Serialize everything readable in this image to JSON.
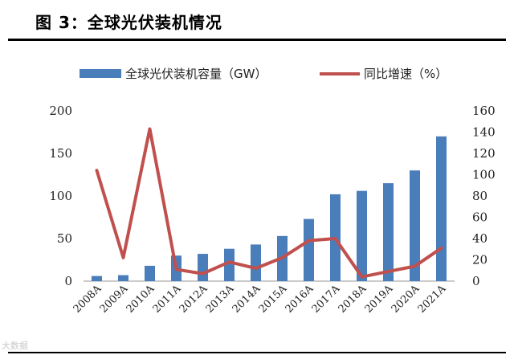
{
  "figure": {
    "title": "图 3：全球光伏装机情况",
    "watermark": "大数据"
  },
  "colors": {
    "bar": "#4a7ebb",
    "line": "#c0504d"
  },
  "chart_data": {
    "type": "bar",
    "categories": [
      "2008A",
      "2009A",
      "2010A",
      "2011A",
      "2012A",
      "2013A",
      "2014A",
      "2015A",
      "2016A",
      "2017A",
      "2018A",
      "2019A",
      "2020A",
      "2021A"
    ],
    "series": [
      {
        "name": "全球光伏装机容量（GW）",
        "type": "bar",
        "axis": "left",
        "values": [
          6,
          7,
          18,
          30,
          32,
          38,
          43,
          53,
          73,
          102,
          106,
          115,
          130,
          170
        ]
      },
      {
        "name": "同比增速（%）",
        "type": "line",
        "axis": "right",
        "values": [
          104,
          22,
          143,
          11,
          7,
          18,
          12,
          22,
          38,
          40,
          4,
          9,
          14,
          31
        ]
      }
    ],
    "left_axis": {
      "ylim": [
        0,
        200
      ],
      "ticks": [
        "0",
        "50",
        "100",
        "150",
        "200"
      ]
    },
    "right_axis": {
      "ylim": [
        0,
        160
      ],
      "ticks": [
        "0",
        "20",
        "40",
        "60",
        "80",
        "100",
        "120",
        "140",
        "160"
      ]
    },
    "grid": false,
    "legend_position": "top"
  }
}
